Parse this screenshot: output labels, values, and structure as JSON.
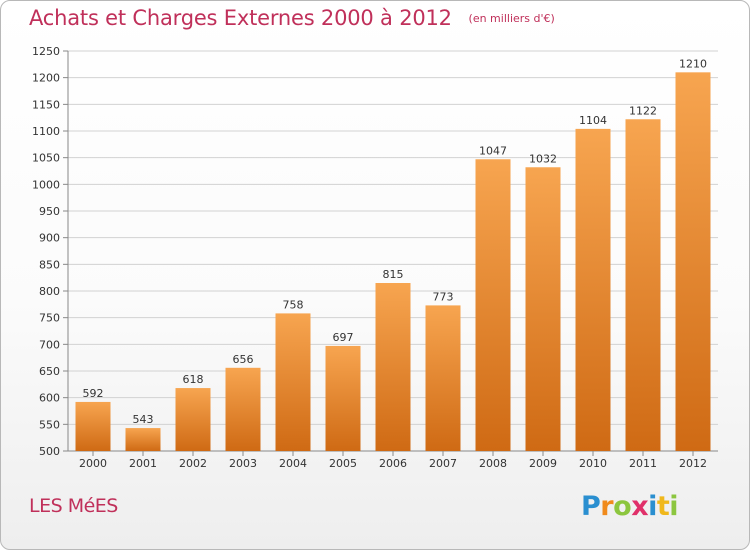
{
  "header": {
    "title": "Achats et Charges Externes 2000 à 2012",
    "unit": "(en milliers d'€)"
  },
  "footer": {
    "place": "LES MéES",
    "logo_letters": [
      {
        "char": "P",
        "color": "#2a8fd0"
      },
      {
        "char": "r",
        "color": "#f08a1c"
      },
      {
        "char": "o",
        "color": "#8cc63f"
      },
      {
        "char": "x",
        "color": "#e0306a"
      },
      {
        "char": "i",
        "color": "#2a8fd0"
      },
      {
        "char": "t",
        "color": "#f0b81c"
      },
      {
        "char": "i",
        "color": "#8cc63f"
      }
    ]
  },
  "chart_data": {
    "type": "bar",
    "title": "Achats et Charges Externes 2000 à 2012",
    "subtitle": "(en milliers d'€)",
    "categories": [
      "2000",
      "2001",
      "2002",
      "2003",
      "2004",
      "2005",
      "2006",
      "2007",
      "2008",
      "2009",
      "2010",
      "2011",
      "2012"
    ],
    "values": [
      592,
      543,
      618,
      656,
      758,
      697,
      815,
      773,
      1047,
      1032,
      1104,
      1122,
      1210
    ],
    "ylim": [
      500,
      1250
    ],
    "yticks": [
      500,
      550,
      600,
      650,
      700,
      750,
      800,
      850,
      900,
      950,
      1000,
      1050,
      1100,
      1150,
      1200,
      1250
    ],
    "grid": true,
    "bar_color_top": "#f7a550",
    "bar_color_bottom": "#cf6a14",
    "grid_color": "#d2d2d2"
  }
}
